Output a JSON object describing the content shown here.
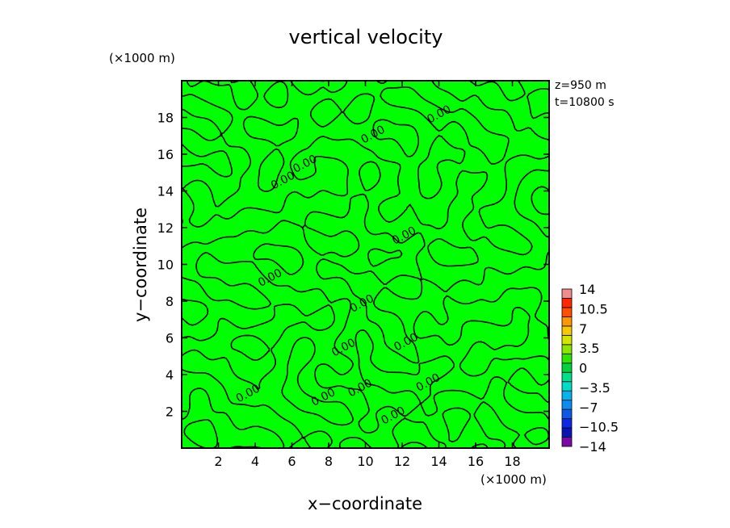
{
  "chart_data": {
    "type": "heatmap",
    "title": "vertical velocity",
    "xlabel": "x−coordinate",
    "ylabel": "y−coordinate",
    "x_unit": "(×1000 m)",
    "y_unit": "(×1000 m)",
    "xlim": [
      0,
      20
    ],
    "ylim": [
      0,
      20
    ],
    "x_ticks": [
      2,
      4,
      6,
      8,
      10,
      12,
      14,
      16,
      18
    ],
    "y_ticks": [
      2,
      4,
      6,
      8,
      10,
      12,
      14,
      16,
      18
    ],
    "x_tick_labels": [
      "2",
      "4",
      "6",
      "8",
      "10",
      "12",
      "14",
      "16",
      "18"
    ],
    "y_tick_labels": [
      "2",
      "4",
      "6",
      "8",
      "10",
      "12",
      "14",
      "16",
      "18"
    ],
    "info_lines": [
      "z=950 m",
      "t=10800 s"
    ],
    "field_value_range": [
      -3.5,
      3.5
    ],
    "contour_level": 0.0,
    "contour_labels": [
      "0.00",
      "0.00",
      "0.00",
      "0.00",
      "0.00",
      "0.00",
      "0.00",
      "0.00",
      "0.00",
      "0.00",
      "0.00",
      "0.00",
      "0.00",
      "0.00"
    ],
    "contour_label_positions": [
      [
        5.6,
        14.4
      ],
      [
        4.9,
        9.1
      ],
      [
        10.5,
        16.9
      ],
      [
        14.1,
        18.0
      ],
      [
        6.8,
        15.3
      ],
      [
        12.2,
        11.4
      ],
      [
        9.9,
        7.7
      ],
      [
        8.9,
        5.3
      ],
      [
        12.3,
        5.6
      ],
      [
        13.5,
        3.4
      ],
      [
        3.7,
        2.8
      ],
      [
        7.8,
        2.6
      ],
      [
        9.8,
        3.1
      ],
      [
        11.6,
        1.6
      ]
    ],
    "colorbar": {
      "levels": [
        -14,
        -12.25,
        -10.5,
        -8.75,
        -7,
        -5.25,
        -3.5,
        -1.75,
        0,
        1.75,
        3.5,
        5.25,
        7,
        8.75,
        10.5,
        12.25,
        14
      ],
      "colors": [
        "#7a0aa5",
        "#0a14b4",
        "#0a28e6",
        "#0a5ae6",
        "#0a8cf0",
        "#00b4f0",
        "#00dcc8",
        "#00e08c",
        "#00d23c",
        "#2ce600",
        "#8ce600",
        "#d2e600",
        "#f5c800",
        "#ff9600",
        "#ff5000",
        "#ff2800",
        "#f08c8c"
      ],
      "tick_labels": [
        "14",
        "10.5",
        "7",
        "3.5",
        "0",
        "−3.5",
        "−7",
        "−10.5",
        "−14"
      ],
      "tick_values": [
        14,
        10.5,
        7,
        3.5,
        0,
        -3.5,
        -7,
        -10.5,
        -14
      ]
    },
    "fill_color": "#00ff00",
    "contour_color": "#000000"
  }
}
